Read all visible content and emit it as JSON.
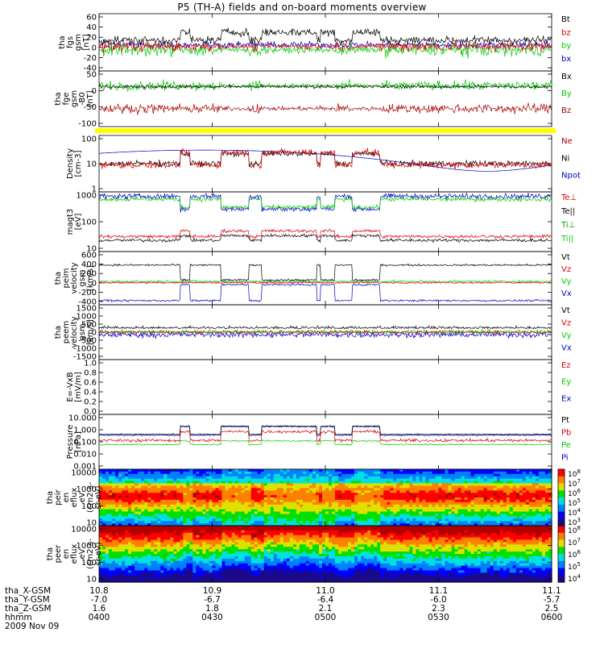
{
  "title": "P5 (TH-A) fields and on-board moments overview",
  "chart_data": {
    "type": "line",
    "time_ticks": [
      "10.8",
      "10.9",
      "11.0",
      "11.1",
      "11.1"
    ],
    "panels": [
      {
        "id": "fgs",
        "ylabel": [
          "tha",
          "fgs",
          "gsm",
          "[nT]"
        ],
        "yticks": [
          "60",
          "40",
          "20",
          "0",
          "-20",
          "-40"
        ],
        "legend": [
          {
            "name": "Bt",
            "color": "#000000"
          },
          {
            "name": "bz",
            "color": "#dd0000"
          },
          {
            "name": "by",
            "color": "#00cc00"
          },
          {
            "name": "bx",
            "color": "#0000cc"
          }
        ]
      },
      {
        "id": "fge",
        "ylabel": [
          "tha",
          "fge",
          "gsm",
          "-B0",
          "[nT]"
        ],
        "yticks": [
          "50",
          "0",
          "-50",
          "-100"
        ],
        "legend": [
          {
            "name": "Bx",
            "color": "#000000"
          },
          {
            "name": "By",
            "color": "#00cc00"
          },
          {
            "name": "Bz",
            "color": "#aa0000"
          }
        ]
      },
      {
        "id": "density",
        "ylabel": [
          "Density",
          "[cm-3]"
        ],
        "yticks": [
          "100",
          "10",
          "1"
        ],
        "legend": [
          {
            "name": "Ne",
            "color": "#aa0000"
          },
          {
            "name": "Ni",
            "color": "#000000"
          },
          {
            "name": "Npot",
            "color": "#0000cc"
          }
        ]
      },
      {
        "id": "temp",
        "ylabel": [
          "magt3",
          "[eV]"
        ],
        "yticks": [
          "1000",
          "100",
          "10"
        ],
        "legend": [
          {
            "name": "Te⊥",
            "color": "#dd0000"
          },
          {
            "name": "Te||",
            "color": "#000000"
          },
          {
            "name": "Ti⊥",
            "color": "#00aa00"
          },
          {
            "name": "Ti||",
            "color": "#00cc00"
          }
        ]
      },
      {
        "id": "peim",
        "ylabel": [
          "tha",
          "peim",
          "velocity",
          "gsm",
          "[km/s]"
        ],
        "yticks": [
          "600",
          "400",
          "200",
          "0",
          "-200",
          "-400"
        ],
        "legend": [
          {
            "name": "Vt",
            "color": "#000000"
          },
          {
            "name": "Vz",
            "color": "#dd0000"
          },
          {
            "name": "Vy",
            "color": "#00cc00"
          },
          {
            "name": "Vx",
            "color": "#0000cc"
          }
        ]
      },
      {
        "id": "peem",
        "ylabel": [
          "tha",
          "peem",
          "velocity",
          "gsm",
          "[km/s]"
        ],
        "yticks": [
          "1500",
          "1000",
          "500",
          "0",
          "-500",
          "-1000",
          "-1500"
        ],
        "legend": [
          {
            "name": "Vt",
            "color": "#000000"
          },
          {
            "name": "Vz",
            "color": "#dd0000"
          },
          {
            "name": "Vy",
            "color": "#00cc00"
          },
          {
            "name": "Vx",
            "color": "#0000cc"
          }
        ]
      },
      {
        "id": "efield",
        "ylabel": [
          "E=-VxB",
          "[mV/m]"
        ],
        "yticks": [
          "1.0",
          "0.8",
          "0.6",
          "0.4",
          "0.2",
          "0.0"
        ],
        "legend": [
          {
            "name": "Ez",
            "color": "#dd0000"
          },
          {
            "name": "Ey",
            "color": "#00cc00"
          },
          {
            "name": "Ex",
            "color": "#0000cc"
          }
        ]
      },
      {
        "id": "pressure",
        "ylabel": [
          "Pressure",
          "[nPa]"
        ],
        "yticks": [
          "10.000",
          "1.000",
          "0.100",
          "0.010",
          "0.001"
        ],
        "legend": [
          {
            "name": "Pt",
            "color": "#000000"
          },
          {
            "name": "Pb",
            "color": "#dd0000"
          },
          {
            "name": "Pe",
            "color": "#00cc00"
          },
          {
            "name": "Pi",
            "color": "#0000cc"
          }
        ]
      },
      {
        "id": "peir",
        "ylabel": [
          "tha",
          "peir",
          "en",
          "eflux",
          "eV",
          "(cm2-s-",
          "sr-eV)"
        ],
        "yticks": [
          "10000",
          "1000",
          "100",
          "10"
        ],
        "colorbar": [
          "10^8",
          "10^7",
          "10^6",
          "10^5",
          "10^4",
          "10^3"
        ]
      },
      {
        "id": "peer",
        "ylabel": [
          "tha",
          "peer",
          "en",
          "eflux",
          "eV",
          "(cm2-s-",
          "sr-eV)"
        ],
        "yticks": [
          "10000",
          "1000",
          "100",
          "10"
        ],
        "colorbar": [
          "10^8",
          "10^7",
          "10^6",
          "10^5",
          "10^4"
        ]
      }
    ],
    "ephemeris": {
      "labels": [
        "tha_X-GSM",
        "tha_Y-GSM",
        "tha_Z-GSM",
        "hhmm",
        "2009 Nov 09"
      ],
      "x_gsm": [
        "10.8",
        "10.9",
        "11.0",
        "11.1",
        "11.1"
      ],
      "y_gsm": [
        "-7.0",
        "-6.7",
        "-6.4",
        "-6.0",
        "-5.7"
      ],
      "z_gsm": [
        "1.6",
        "1.8",
        "2.1",
        "2.3",
        "2.5"
      ],
      "hhmm": [
        "0400",
        "0430",
        "0500",
        "0530",
        "0600"
      ]
    },
    "flag_bar_color": "#ffff00"
  }
}
